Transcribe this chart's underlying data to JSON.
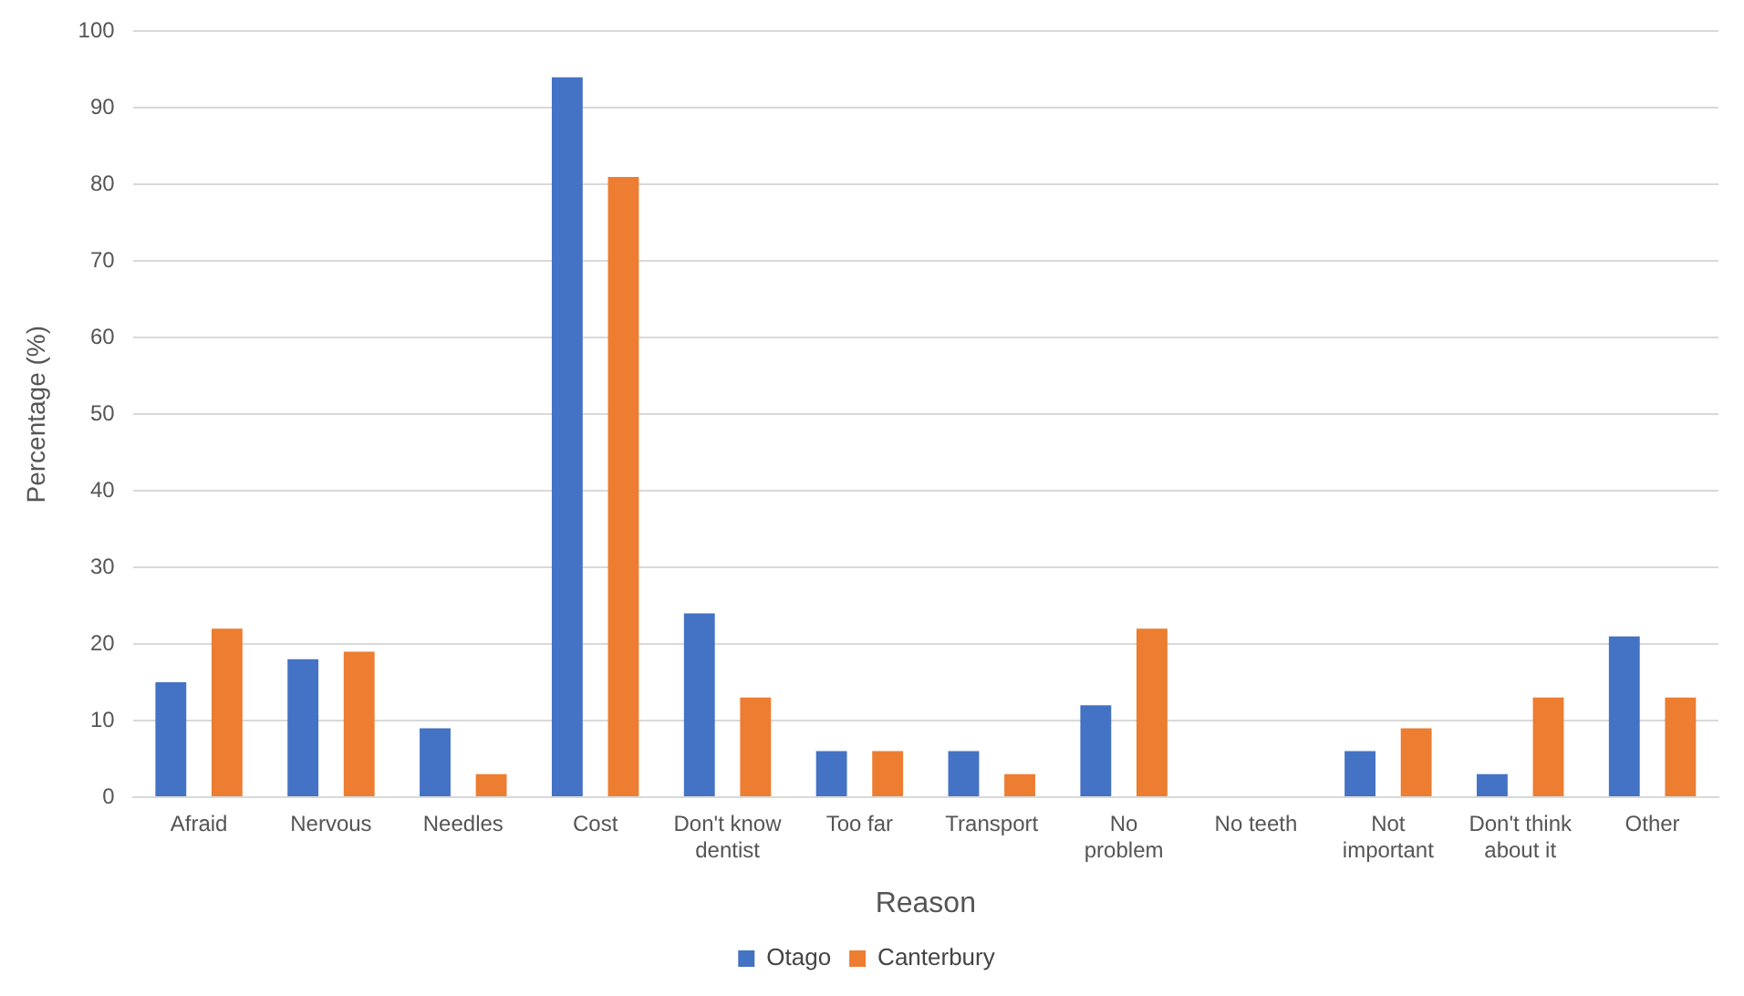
{
  "chart_data": {
    "type": "bar",
    "xlabel": "Reason",
    "ylabel": "Percentage (%)",
    "categories": [
      "Afraid",
      "Nervous",
      "Needles",
      "Cost",
      "Don't know dentist",
      "Too far",
      "Transport",
      "No problem",
      "No teeth",
      "Not important",
      "Don't think about it",
      "Other"
    ],
    "series": [
      {
        "name": "Otago",
        "color": "#4472c4",
        "values": [
          15,
          18,
          9,
          94,
          24,
          6,
          6,
          12,
          0,
          6,
          3,
          21
        ]
      },
      {
        "name": "Canterbury",
        "color": "#ed7d31",
        "values": [
          22,
          19,
          3,
          81,
          13,
          6,
          3,
          22,
          0,
          9,
          13,
          13
        ]
      }
    ],
    "ylim": [
      0,
      100
    ],
    "yticks": [
      0,
      10,
      20,
      30,
      40,
      50,
      60,
      70,
      80,
      90,
      100
    ],
    "grid": "y",
    "legend": "bottom"
  }
}
